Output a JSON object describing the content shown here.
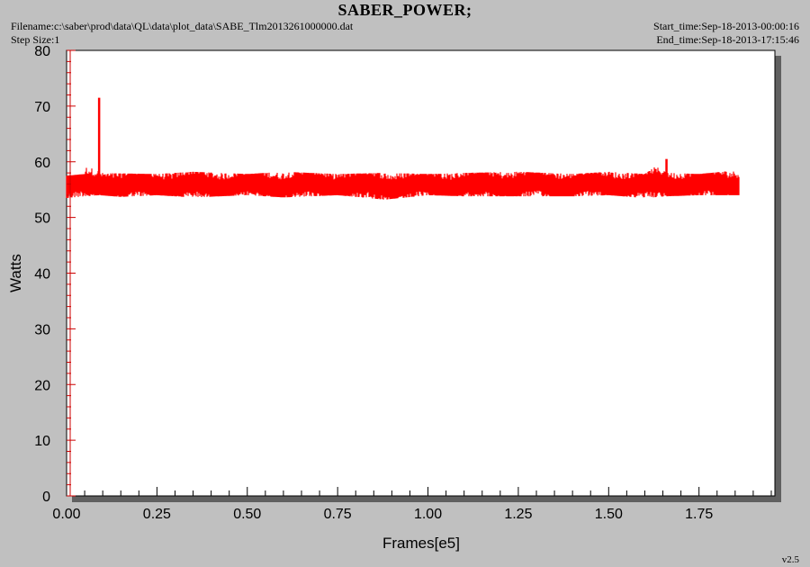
{
  "header": {
    "title": "SABER_POWER;",
    "filename": "Filename:c:\\saber\\prod\\data\\QL\\data\\plot_data\\SABE_Tlm2013261000000.dat",
    "step_size": "Step Size:1",
    "start_time": "Start_time:Sep-18-2013-00:00:16",
    "end_time": "End_time:Sep-18-2013-17:15:46"
  },
  "footer": {
    "version": "v2.5"
  },
  "colors": {
    "background": "#c0c0c0",
    "plot_area": "#ffffff",
    "series": "#ff0000",
    "axis_ticks": "#cc0000",
    "shadow": "#606060"
  },
  "chart_data": {
    "type": "line",
    "title": "SABER_POWER;",
    "xlabel": "Frames[e5]",
    "ylabel": "Watts",
    "xlim": [
      0,
      1.96
    ],
    "ylim": [
      0,
      80
    ],
    "xticks": [
      "0.00",
      "0.25",
      "0.50",
      "0.75",
      "1.00",
      "1.25",
      "1.50",
      "1.75"
    ],
    "yticks": [
      "0",
      "10",
      "20",
      "30",
      "40",
      "50",
      "60",
      "70",
      "80"
    ],
    "grid": false,
    "series": [
      {
        "x": [
          0.0,
          0.05,
          0.09,
          0.091,
          0.15,
          0.25,
          0.35,
          0.5,
          0.6,
          0.75,
          0.88,
          1.0,
          1.1,
          1.25,
          1.4,
          1.5,
          1.6,
          1.66,
          1.661,
          1.75,
          1.86
        ],
        "y_min": [
          53.5,
          53.8,
          54,
          54,
          53.7,
          54,
          53.6,
          54,
          53.6,
          54,
          53.2,
          54,
          53.8,
          53.8,
          53.8,
          54,
          53.5,
          53.8,
          53.8,
          54,
          54
        ],
        "y_max": [
          57.5,
          57.8,
          71.5,
          58,
          57.9,
          57.8,
          58.2,
          57.8,
          58.2,
          57.8,
          58,
          57.8,
          58,
          58.2,
          57.8,
          58.2,
          57.8,
          60.5,
          58,
          57.8,
          58.5
        ],
        "y_mean": [
          55.8,
          56,
          56,
          56,
          55.8,
          55.9,
          55.8,
          55.9,
          55.9,
          55.9,
          55.7,
          55.8,
          55.9,
          56,
          55.9,
          56,
          55.8,
          56.2,
          56,
          55.9,
          56.2
        ]
      }
    ]
  }
}
